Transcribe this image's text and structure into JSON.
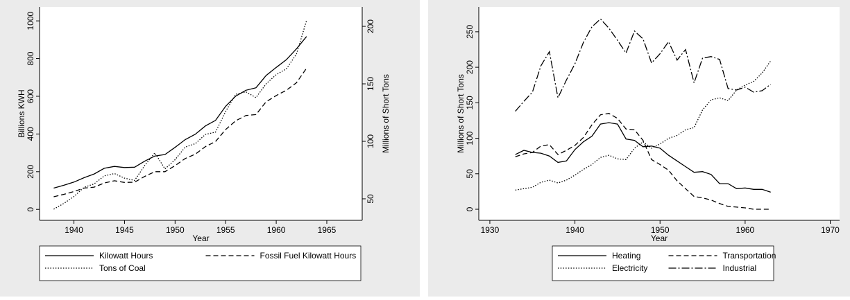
{
  "chart_data": [
    {
      "type": "line",
      "x_label": "Year",
      "y_label": "Billions KWH",
      "y2_label": "Millions of Short Tons",
      "x": [
        1938,
        1939,
        1940,
        1941,
        1942,
        1943,
        1944,
        1945,
        1946,
        1947,
        1948,
        1949,
        1950,
        1951,
        1952,
        1953,
        1954,
        1955,
        1956,
        1957,
        1958,
        1959,
        1960,
        1961,
        1962,
        1963
      ],
      "xlim": [
        1936.6,
        1968.5
      ],
      "xticks": [
        1940,
        1945,
        1950,
        1955,
        1960,
        1965
      ],
      "ylim": [
        -58,
        1074
      ],
      "yticks": [
        0,
        200,
        400,
        600,
        800,
        1000
      ],
      "y2lim": [
        31.3,
        216.9
      ],
      "y2ticks": [
        50,
        100,
        150,
        200
      ],
      "legend_columns": 2,
      "series": [
        {
          "name": "Kilowatt Hours",
          "color": "#000000",
          "line_style": "solid",
          "values": [
            113,
            128,
            145,
            168,
            188,
            218,
            228,
            222,
            224,
            256,
            283,
            291,
            329,
            370,
            399,
            443,
            472,
            547,
            601,
            632,
            645,
            710,
            753,
            794,
            852,
            917
          ]
        },
        {
          "name": "Fossil Fuel Kilowatt Hours",
          "color": "#000000",
          "line_style": "dashed",
          "values": [
            67,
            80,
            95,
            113,
            118,
            140,
            152,
            143,
            144,
            175,
            200,
            200,
            232,
            270,
            293,
            333,
            360,
            424,
            470,
            498,
            503,
            571,
            604,
            632,
            672,
            749
          ]
        },
        {
          "name": "Tons of Coal",
          "color": "#000000",
          "line_style": "dotted",
          "axis": "y2",
          "values": [
            41,
            46,
            52,
            60,
            63,
            70,
            72,
            68,
            66,
            79,
            90,
            76,
            84,
            95,
            98,
            106,
            108,
            126,
            141,
            143,
            138,
            150,
            158,
            163,
            176,
            205
          ]
        }
      ]
    },
    {
      "type": "line",
      "x_label": "Year",
      "y_label": "Millions of Short Tons",
      "x": [
        1933,
        1934,
        1935,
        1936,
        1937,
        1938,
        1939,
        1940,
        1941,
        1942,
        1943,
        1944,
        1945,
        1946,
        1947,
        1948,
        1949,
        1950,
        1951,
        1952,
        1953,
        1954,
        1955,
        1956,
        1957,
        1958,
        1959,
        1960,
        1961,
        1962,
        1963
      ],
      "xlim": [
        1928.7,
        1971.1
      ],
      "xticks": [
        1930,
        1940,
        1950,
        1960,
        1970
      ],
      "ylim": [
        -15.6,
        285
      ],
      "yticks": [
        0,
        50,
        100,
        150,
        200,
        250
      ],
      "legend_columns": 2,
      "series": [
        {
          "name": "Heating",
          "color": "#000000",
          "line_style": "solid",
          "values": [
            77,
            83,
            80,
            79,
            75,
            66,
            68,
            84,
            95,
            103,
            120,
            122,
            120,
            99,
            97,
            88,
            89,
            86,
            76,
            68,
            60,
            52,
            53,
            49,
            36,
            36,
            29,
            30,
            28,
            28,
            24
          ]
        },
        {
          "name": "Transportation",
          "color": "#000000",
          "line_style": "dashed",
          "values": [
            74,
            78,
            80,
            89,
            91,
            77,
            83,
            90,
            101,
            119,
            133,
            135,
            128,
            113,
            112,
            97,
            70,
            63,
            55,
            40,
            29,
            18,
            16,
            13,
            8,
            4,
            3,
            2,
            0,
            0,
            0
          ]
        },
        {
          "name": "Electricity",
          "color": "#000000",
          "line_style": "dotted",
          "values": [
            27,
            29,
            31,
            38,
            41,
            37,
            41,
            48,
            56,
            63,
            73,
            76,
            71,
            70,
            86,
            95,
            86,
            92,
            100,
            104,
            112,
            115,
            140,
            154,
            157,
            153,
            168,
            175,
            180,
            192,
            209
          ]
        },
        {
          "name": "Industrial",
          "color": "#000000",
          "line_style": "dashdot",
          "values": [
            138,
            152,
            165,
            202,
            222,
            157,
            182,
            205,
            235,
            257,
            268,
            255,
            238,
            220,
            251,
            240,
            206,
            219,
            236,
            210,
            225,
            178,
            213,
            215,
            211,
            170,
            168,
            172,
            165,
            167,
            176
          ]
        }
      ]
    }
  ]
}
